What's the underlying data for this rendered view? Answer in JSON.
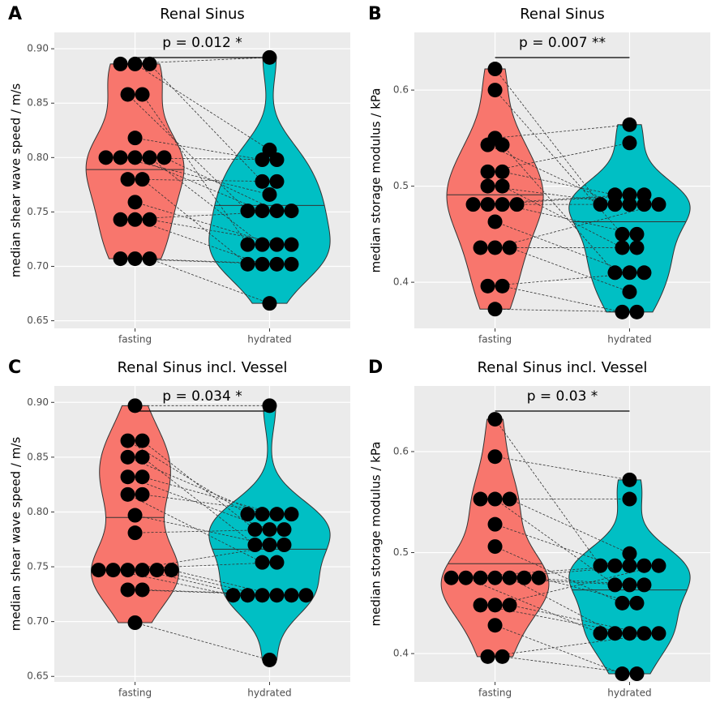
{
  "chart_data": [
    {
      "type": "violin",
      "panel": "A",
      "title": "Renal Sinus",
      "annotation": "p = 0.012 *",
      "ylabel": "median shear wave speed / m/s",
      "categories": [
        "fasting",
        "hydrated"
      ],
      "series": [
        {
          "color": "#F8766D",
          "median": 0.789,
          "values": [
            0.886,
            0.886,
            0.886,
            0.858,
            0.858,
            0.818,
            0.8,
            0.8,
            0.8,
            0.8,
            0.8,
            0.78,
            0.78,
            0.759,
            0.743,
            0.743,
            0.743,
            0.707,
            0.707,
            0.707
          ]
        },
        {
          "color": "#00BFC4",
          "median": 0.756,
          "values": [
            0.892,
            0.807,
            0.778,
            0.751,
            0.72,
            0.798,
            0.798,
            0.766,
            0.751,
            0.72,
            0.751,
            0.778,
            0.702,
            0.72,
            0.751,
            0.702,
            0.72,
            0.702,
            0.702,
            0.666
          ]
        }
      ],
      "ylim": [
        0.643,
        0.915
      ],
      "yticks": [
        0.65,
        {
          "value": 0.7,
          "label": "0.70"
        },
        0.75,
        {
          "value": 0.8,
          "label": "0.80"
        },
        0.85,
        {
          "value": 0.9,
          "label": "0.90"
        }
      ],
      "grid": true
    },
    {
      "type": "violin",
      "panel": "B",
      "title": "Renal Sinus",
      "annotation": "p = 0.007 **",
      "ylabel": "median storage modulus / kPa",
      "categories": [
        "fasting",
        "hydrated"
      ],
      "series": [
        {
          "color": "#F8766D",
          "median": 0.491,
          "values": [
            0.622,
            0.6,
            0.55,
            0.543,
            0.543,
            0.515,
            0.515,
            0.5,
            0.5,
            0.481,
            0.481,
            0.481,
            0.481,
            0.463,
            0.436,
            0.436,
            0.436,
            0.396,
            0.396,
            0.372
          ]
        },
        {
          "color": "#00BFC4",
          "median": 0.463,
          "values": [
            0.481,
            0.45,
            0.564,
            0.481,
            0.41,
            0.545,
            0.491,
            0.481,
            0.436,
            0.491,
            0.491,
            0.45,
            0.481,
            0.41,
            0.436,
            0.481,
            0.39,
            0.41,
            0.369,
            0.369
          ]
        }
      ],
      "ylim": [
        0.352,
        0.66
      ],
      "yticks": [
        0.4,
        0.5,
        0.6
      ],
      "grid": true
    },
    {
      "type": "violin",
      "panel": "C",
      "title": "Renal Sinus incl. Vessel",
      "annotation": "p = 0.034 *",
      "ylabel": "median shear wave speed / m/s",
      "categories": [
        "fasting",
        "hydrated"
      ],
      "series": [
        {
          "color": "#F8766D",
          "median": 0.795,
          "values": [
            0.897,
            0.865,
            0.865,
            0.85,
            0.85,
            0.832,
            0.832,
            0.816,
            0.816,
            0.797,
            0.781,
            0.747,
            0.747,
            0.747,
            0.747,
            0.747,
            0.747,
            0.729,
            0.729,
            0.699
          ]
        },
        {
          "color": "#00BFC4",
          "median": 0.766,
          "values": [
            0.897,
            0.798,
            0.784,
            0.798,
            0.77,
            0.784,
            0.798,
            0.754,
            0.798,
            0.77,
            0.784,
            0.754,
            0.724,
            0.77,
            0.724,
            0.724,
            0.724,
            0.724,
            0.724,
            0.665
          ]
        }
      ],
      "ylim": [
        0.645,
        0.915
      ],
      "yticks": [
        0.65,
        {
          "value": 0.7,
          "label": "0.70"
        },
        0.75,
        {
          "value": 0.8,
          "label": "0.80"
        },
        0.85,
        {
          "value": 0.9,
          "label": "0.90"
        }
      ],
      "grid": true
    },
    {
      "type": "violin",
      "panel": "D",
      "title": "Renal Sinus incl. Vessel",
      "annotation": "p = 0.03 *",
      "ylabel": "median storage modulus / kPa",
      "categories": [
        "fasting",
        "hydrated"
      ],
      "series": [
        {
          "color": "#F8766D",
          "median": 0.489,
          "values": [
            0.632,
            0.595,
            0.553,
            0.553,
            0.553,
            0.528,
            0.506,
            0.475,
            0.475,
            0.475,
            0.475,
            0.475,
            0.475,
            0.475,
            0.448,
            0.448,
            0.448,
            0.428,
            0.397,
            0.397
          ]
        },
        {
          "color": "#00BFC4",
          "median": 0.463,
          "values": [
            0.487,
            0.572,
            0.553,
            0.468,
            0.499,
            0.487,
            0.45,
            0.487,
            0.42,
            0.468,
            0.487,
            0.42,
            0.468,
            0.45,
            0.42,
            0.487,
            0.42,
            0.38,
            0.42,
            0.38
          ]
        }
      ],
      "ylim": [
        0.372,
        0.665
      ],
      "yticks": [
        0.4,
        0.5,
        0.6
      ],
      "grid": true
    }
  ]
}
